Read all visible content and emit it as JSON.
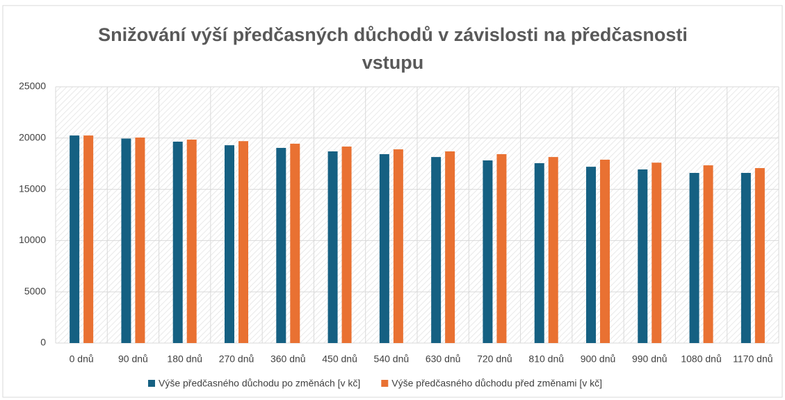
{
  "chart_data": {
    "type": "bar",
    "title": "Snižování výší předčasných důchodů v závislosti na předčasnosti vstupu",
    "categories": [
      "0 dnů",
      "90 dnů",
      "180 dnů",
      "270 dnů",
      "360 dnů",
      "450 dnů",
      "540 dnů",
      "630 dnů",
      "720 dnů",
      "810 dnů",
      "900 dnů",
      "990 dnů",
      "1080 dnů",
      "1170 dnů"
    ],
    "series": [
      {
        "name": "Výše předčasného důchodu po změnách [v kč]",
        "color": "#156082",
        "values": [
          20250,
          19950,
          19650,
          19300,
          19040,
          18700,
          18430,
          18150,
          17820,
          17550,
          17200,
          16940,
          16600,
          16600
        ]
      },
      {
        "name": "Výše předčasného důchodu před změnami [v kč]",
        "color": "#e97132",
        "values": [
          20250,
          20050,
          19850,
          19700,
          19450,
          19170,
          18900,
          18700,
          18430,
          18150,
          17890,
          17600,
          17340,
          17070
        ]
      }
    ],
    "ylim": [
      0,
      25000
    ],
    "yticks": [
      0,
      5000,
      10000,
      15000,
      20000,
      25000
    ],
    "grid": true
  }
}
